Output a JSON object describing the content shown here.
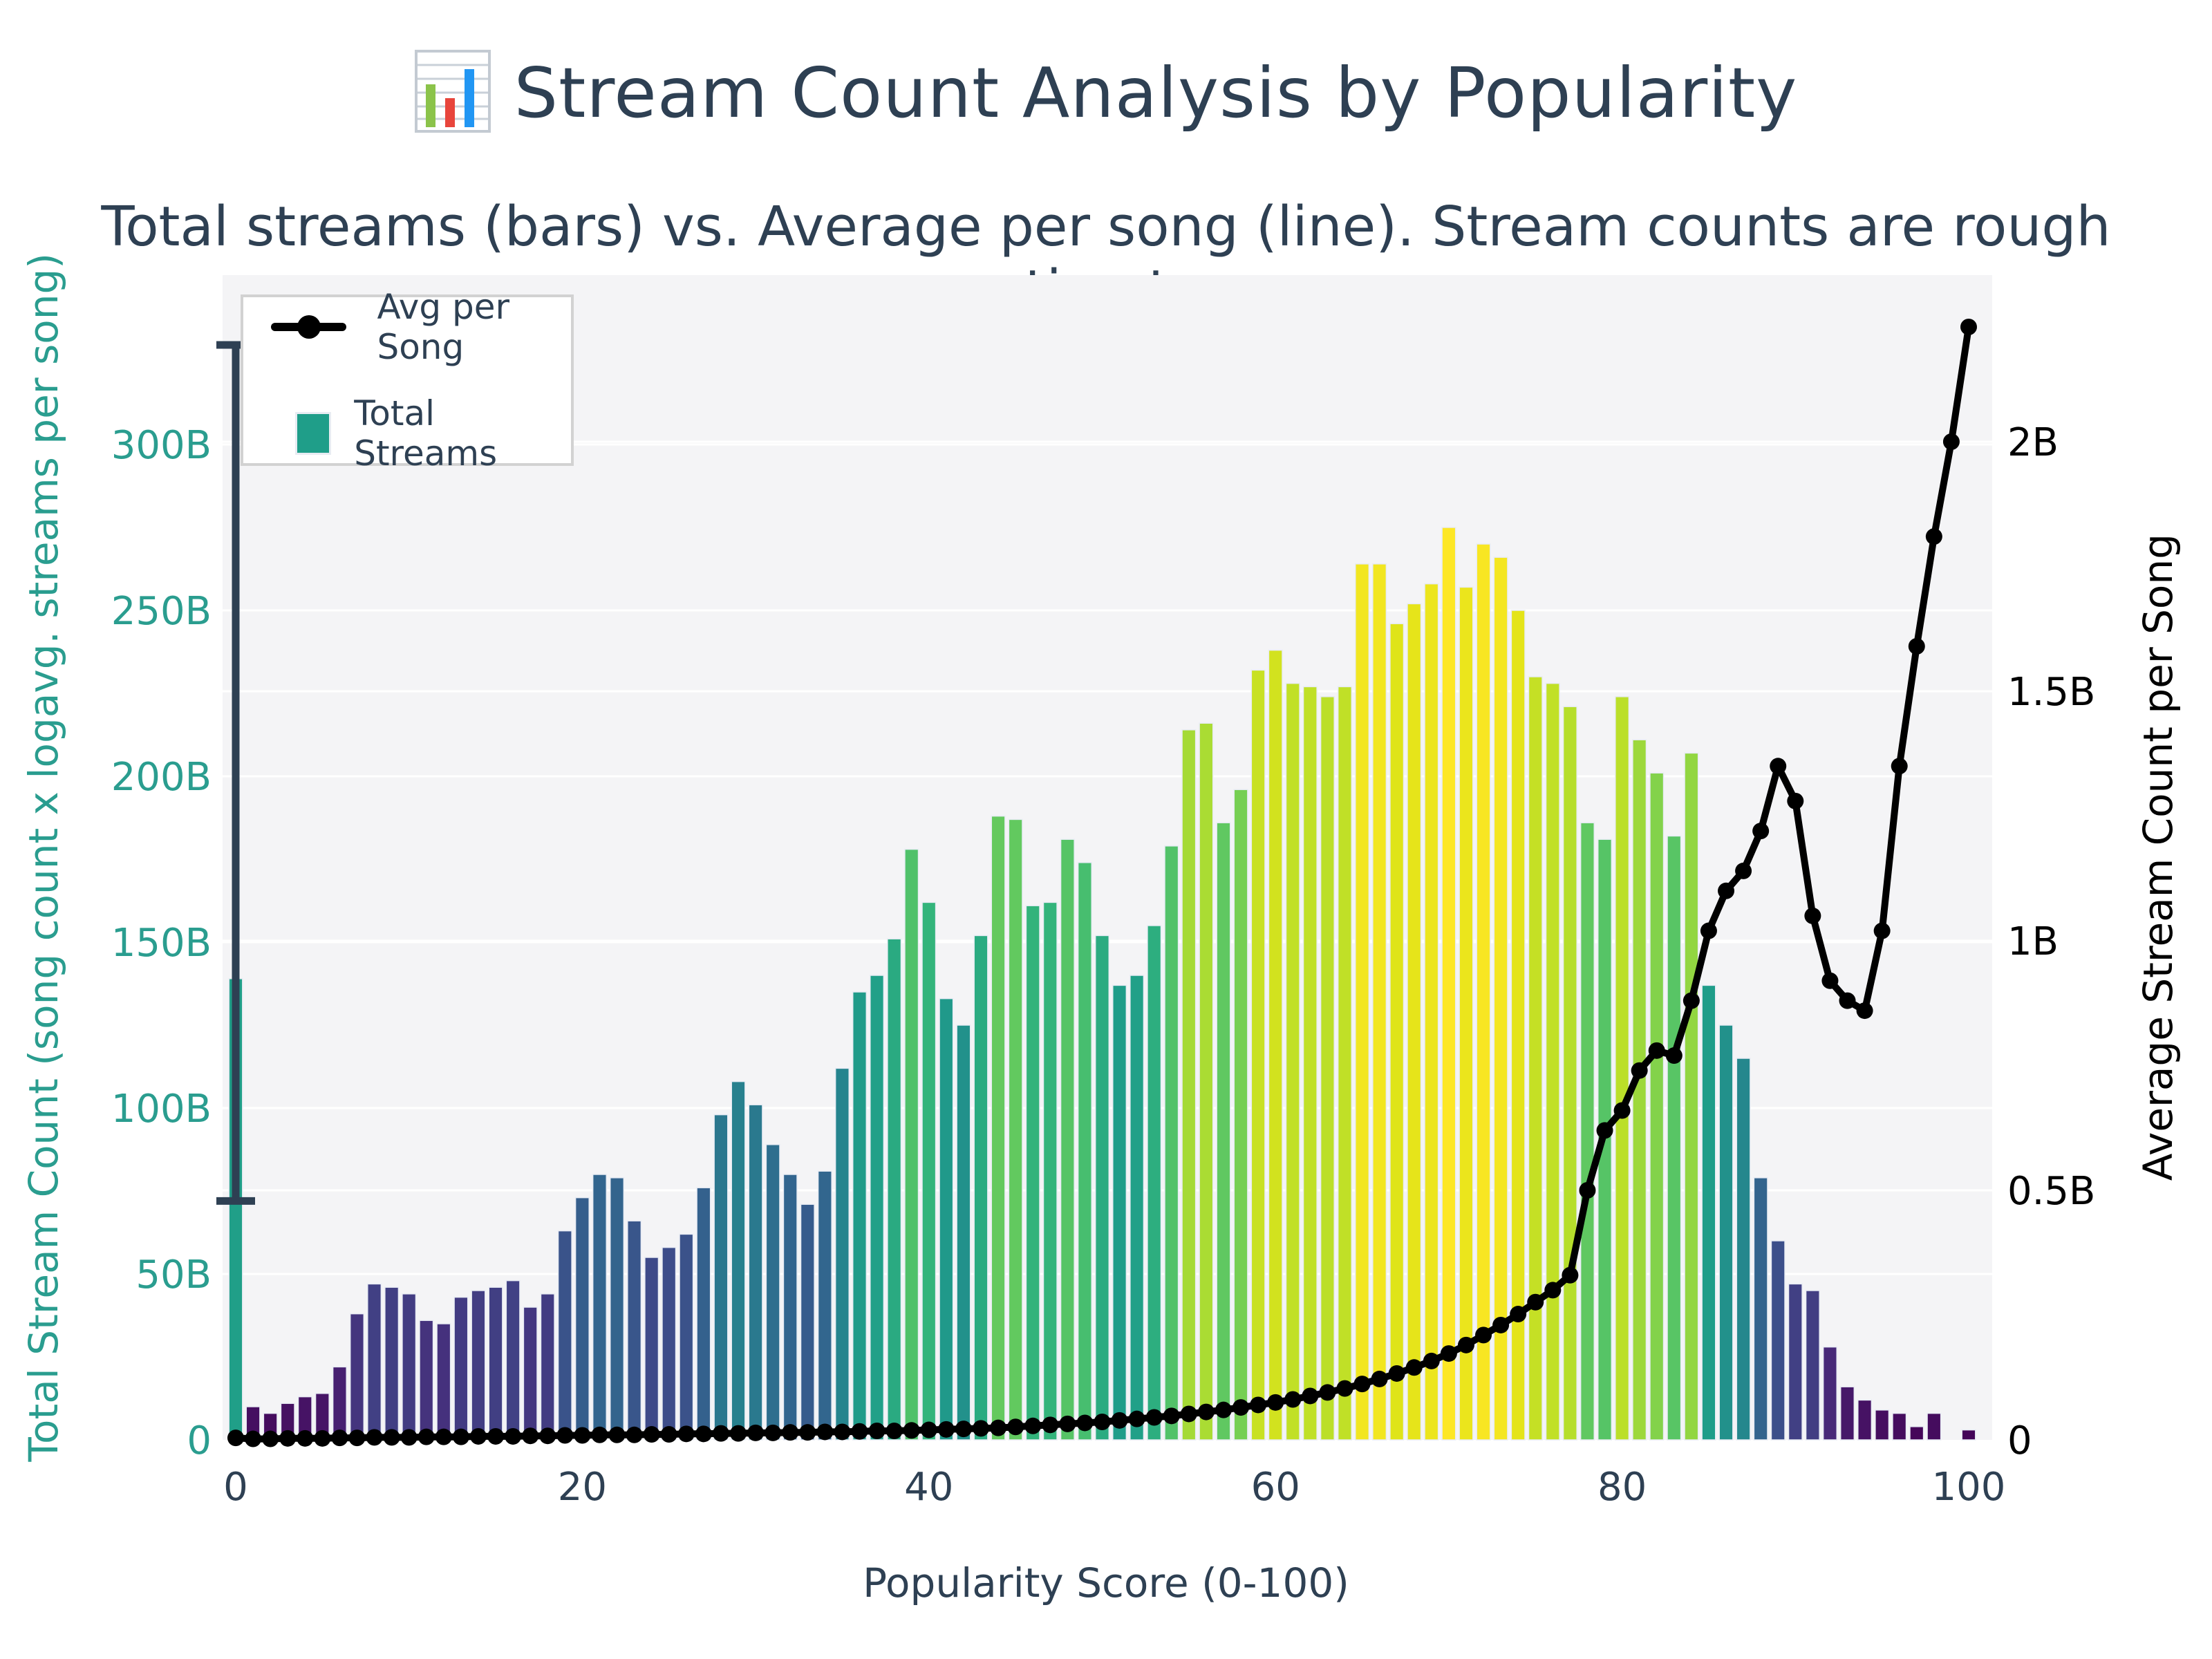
{
  "title": "Stream Count Analysis by Popularity",
  "subtitle": "Total streams (bars) vs. Average per song (line). Stream counts are rough estimates.",
  "legend": {
    "items": [
      {
        "label": "Avg per Song",
        "marker": "line-dot",
        "color": "#000000"
      },
      {
        "label": "Total Streams",
        "marker": "square",
        "color": "#1f9e89"
      }
    ]
  },
  "colors": {
    "navy": "#2e4053",
    "teal_axis": "#2a9d8f",
    "plot_bg": "#f4f4f6",
    "grid": "#ffffff",
    "line": "#000000",
    "error_bar": "#2e4053"
  },
  "chart_data": {
    "type": "bar+line",
    "title": "Stream Count Analysis by Popularity",
    "subtitle": "Total streams (bars) vs. Average per song (line). Stream counts are rough estimates.",
    "xlabel": "Popularity Score (0-100)",
    "ylabel_left": "Total Stream Count (song count x logavg. streams per song)",
    "ylabel_right": "Average Stream Count per Song",
    "legend_position": "upper left",
    "grid": true,
    "xlim": [
      -1.2,
      101.5
    ],
    "ylim_left_B": [
      0,
      351
    ],
    "ylim_right_B": [
      0,
      2.33
    ],
    "xticks": [
      0,
      20,
      40,
      60,
      80,
      100
    ],
    "yticks_left": [
      {
        "v": 0,
        "label": "0"
      },
      {
        "v": 50,
        "label": "50B"
      },
      {
        "v": 100,
        "label": "100B"
      },
      {
        "v": 150,
        "label": "150B"
      },
      {
        "v": 200,
        "label": "200B"
      },
      {
        "v": 250,
        "label": "250B"
      },
      {
        "v": 300,
        "label": "300B"
      }
    ],
    "yticks_right": [
      {
        "v": 0,
        "label": "0"
      },
      {
        "v": 0.5,
        "label": "0.5B"
      },
      {
        "v": 1,
        "label": "1B"
      },
      {
        "v": 1.5,
        "label": "1.5B"
      },
      {
        "v": 2,
        "label": "2B"
      }
    ],
    "x": [
      0,
      1,
      2,
      3,
      4,
      5,
      6,
      7,
      8,
      9,
      10,
      11,
      12,
      13,
      14,
      15,
      16,
      17,
      18,
      19,
      20,
      21,
      22,
      23,
      24,
      25,
      26,
      27,
      28,
      29,
      30,
      31,
      32,
      33,
      34,
      35,
      36,
      37,
      38,
      39,
      40,
      41,
      42,
      43,
      44,
      45,
      46,
      47,
      48,
      49,
      50,
      51,
      52,
      53,
      54,
      55,
      56,
      57,
      58,
      59,
      60,
      61,
      62,
      63,
      64,
      65,
      66,
      67,
      68,
      69,
      70,
      71,
      72,
      73,
      74,
      75,
      76,
      77,
      78,
      79,
      80,
      81,
      82,
      83,
      84,
      85,
      86,
      87,
      88,
      89,
      90,
      91,
      92,
      93,
      94,
      95,
      96,
      97,
      98,
      99,
      100
    ],
    "bars": {
      "name": "Total Streams",
      "axis": "left",
      "unit": "billions of streams",
      "colormap": "viridis mapped to bar value",
      "values_B": [
        139,
        10,
        8,
        11,
        13,
        14,
        22,
        38,
        47,
        46,
        44,
        36,
        35,
        43,
        45,
        46,
        48,
        40,
        44,
        63,
        73,
        80,
        79,
        66,
        55,
        58,
        62,
        76,
        98,
        108,
        101,
        89,
        80,
        71,
        81,
        112,
        135,
        140,
        151,
        178,
        162,
        133,
        125,
        152,
        188,
        187,
        161,
        162,
        181,
        174,
        152,
        137,
        140,
        155,
        179,
        214,
        216,
        186,
        196,
        232,
        238,
        228,
        227,
        224,
        227,
        264,
        264,
        246,
        252,
        258,
        275,
        257,
        270,
        266,
        250,
        230,
        228,
        221,
        186,
        181,
        224,
        211,
        201,
        182,
        207,
        137,
        125,
        115,
        79,
        60,
        47,
        45,
        28,
        16,
        12,
        9,
        8,
        4,
        8,
        0,
        3
      ],
      "error_bar": {
        "x": 0,
        "low_B": 72,
        "high_B": 330
      }
    },
    "line": {
      "name": "Avg per Song",
      "axis": "right",
      "unit": "billions of streams per song",
      "color": "#000000",
      "marker": "circle",
      "values_B": [
        0.004,
        0.002,
        0.002,
        0.003,
        0.003,
        0.003,
        0.004,
        0.004,
        0.005,
        0.005,
        0.005,
        0.006,
        0.006,
        0.006,
        0.007,
        0.007,
        0.007,
        0.008,
        0.008,
        0.009,
        0.009,
        0.01,
        0.01,
        0.01,
        0.011,
        0.011,
        0.012,
        0.012,
        0.013,
        0.013,
        0.014,
        0.014,
        0.015,
        0.015,
        0.016,
        0.016,
        0.017,
        0.018,
        0.018,
        0.019,
        0.02,
        0.021,
        0.022,
        0.023,
        0.024,
        0.026,
        0.028,
        0.03,
        0.032,
        0.034,
        0.036,
        0.039,
        0.042,
        0.045,
        0.048,
        0.052,
        0.056,
        0.06,
        0.065,
        0.07,
        0.075,
        0.081,
        0.088,
        0.095,
        0.103,
        0.112,
        0.122,
        0.133,
        0.145,
        0.158,
        0.173,
        0.19,
        0.21,
        0.23,
        0.252,
        0.276,
        0.3,
        0.33,
        0.5,
        0.62,
        0.66,
        0.74,
        0.78,
        0.77,
        0.88,
        1.02,
        1.1,
        1.14,
        1.22,
        1.35,
        1.28,
        1.05,
        0.92,
        0.88,
        0.86,
        1.02,
        1.35,
        1.59,
        1.81,
        2.0,
        2.23
      ]
    }
  }
}
